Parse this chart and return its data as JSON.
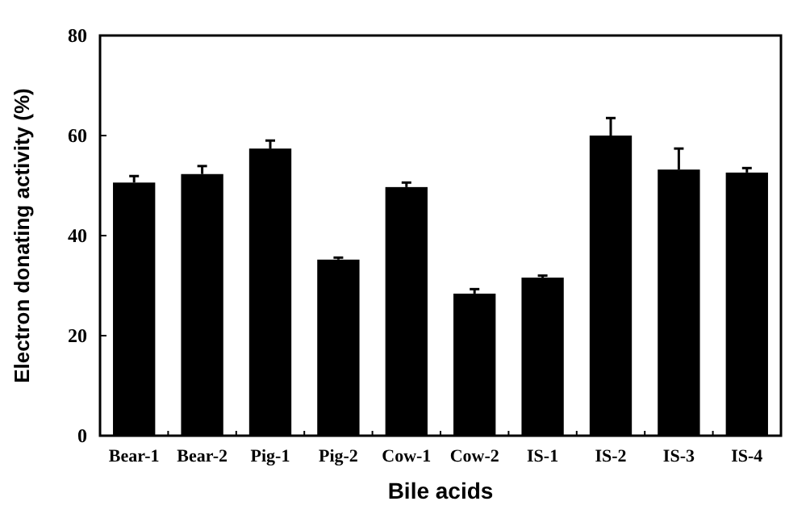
{
  "chart_data": {
    "type": "bar",
    "xlabel": "Bile acids",
    "ylabel": "Electron donating activity (%)",
    "categories": [
      "Bear-1",
      "Bear-2",
      "Pig-1",
      "Pig-2",
      "Cow-1",
      "Cow-2",
      "IS-1",
      "IS-2",
      "IS-3",
      "IS-4"
    ],
    "values": [
      50.6,
      52.3,
      57.4,
      35.2,
      49.7,
      28.4,
      31.6,
      60.0,
      53.2,
      52.6
    ],
    "errors": [
      1.3,
      1.6,
      1.6,
      0.4,
      0.9,
      0.9,
      0.4,
      3.5,
      4.2,
      0.9
    ],
    "color": "#000000",
    "ylim": [
      0,
      80
    ],
    "yticks": [
      0,
      20,
      40,
      60,
      80
    ],
    "grid": false
  }
}
